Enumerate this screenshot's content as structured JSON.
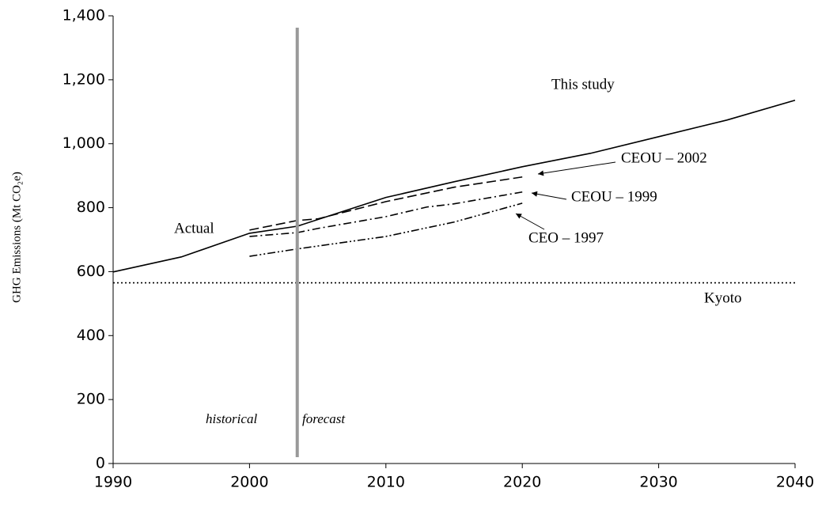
{
  "chart_data": {
    "type": "line",
    "y_label": "GHG Emissions (Mt CO₂e)",
    "xlim": [
      1990,
      2040
    ],
    "xticks": [
      1990,
      2000,
      2010,
      2020,
      2030,
      2040
    ],
    "ylim": [
      0,
      1400
    ],
    "yticks": [
      0,
      200,
      400,
      600,
      800,
      {
        "value": 1000,
        "label": "1,000"
      },
      {
        "value": 1200,
        "label": "1,200"
      },
      {
        "value": 1400,
        "label": "1,400"
      }
    ],
    "divider_x": 2003.5,
    "annotations": [
      "Actual",
      "historical",
      "forecast"
    ],
    "series": [
      {
        "name": "This study",
        "color": "#000000",
        "style": "solid",
        "x": [
          1990,
          1995,
          2000,
          2003.5,
          2010,
          2015,
          2020,
          2025,
          2030,
          2035,
          2040
        ],
        "values": [
          599,
          646,
          720,
          742,
          832,
          881,
          928,
          970,
          1022,
          1074,
          1136
        ]
      },
      {
        "name": "CEOU – 2002",
        "color": "#000000",
        "style": "dashed",
        "x": [
          2000,
          2003.5,
          2005,
          2010,
          2015,
          2020
        ],
        "values": [
          730,
          760,
          765,
          819,
          864,
          896
        ]
      },
      {
        "name": "CEOU – 1999",
        "color": "#000000",
        "style": "dashdot",
        "x": [
          2000,
          2003.5,
          2005,
          2010,
          2013,
          2015,
          2020
        ],
        "values": [
          710,
          722,
          735,
          772,
          802,
          812,
          849
        ]
      },
      {
        "name": "CEO – 1997",
        "color": "#000000",
        "style": "dashdotdot",
        "x": [
          2000,
          2003.5,
          2005,
          2010,
          2015,
          2020
        ],
        "values": [
          648,
          671,
          680,
          710,
          755,
          814
        ]
      },
      {
        "name": "Kyoto",
        "color": "#000000",
        "style": "dotted",
        "x": [
          1990,
          2040
        ],
        "values": [
          565,
          565
        ]
      }
    ]
  }
}
